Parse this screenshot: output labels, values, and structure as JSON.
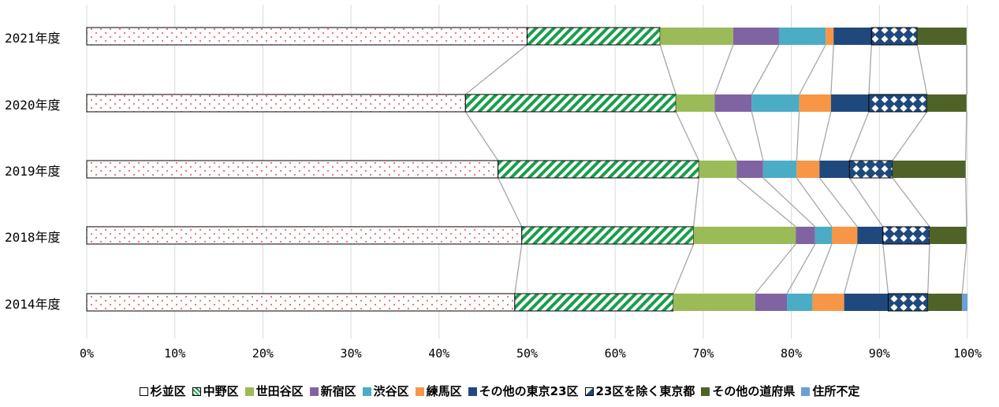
{
  "chart_data": {
    "type": "bar",
    "orientation": "horizontal",
    "stacked": "100%",
    "title": "",
    "xlabel": "",
    "ylabel": "",
    "xlim": [
      0,
      100
    ],
    "x_ticks": [
      "0%",
      "10%",
      "20%",
      "30%",
      "40%",
      "50%",
      "60%",
      "70%",
      "80%",
      "90%",
      "100%"
    ],
    "categories": [
      "2021年度",
      "2020年度",
      "2019年度",
      "2018年度",
      "2014年度"
    ],
    "series": [
      {
        "name": "杉並区",
        "color": "#ffffff",
        "pattern": "dots",
        "values": [
          50.0,
          43.0,
          46.7,
          49.4,
          48.6
        ]
      },
      {
        "name": "中野区",
        "color": "#1a9e4b",
        "pattern": "stripes",
        "values": [
          15.1,
          23.9,
          22.8,
          19.5,
          18.0
        ]
      },
      {
        "name": "世田谷区",
        "color": "#9bbb59",
        "pattern": "solid",
        "values": [
          8.3,
          4.4,
          4.3,
          11.6,
          9.3
        ]
      },
      {
        "name": "新宿区",
        "color": "#8064a2",
        "pattern": "solid",
        "values": [
          5.2,
          4.2,
          3.0,
          2.2,
          3.6
        ]
      },
      {
        "name": "渋谷区",
        "color": "#4bacc6",
        "pattern": "solid",
        "values": [
          5.3,
          5.4,
          3.8,
          1.9,
          2.9
        ]
      },
      {
        "name": "練馬区",
        "color": "#f79646",
        "pattern": "solid",
        "values": [
          0.9,
          3.6,
          2.6,
          2.9,
          3.6
        ]
      },
      {
        "name": "その他の東京23区",
        "color": "#1f497d",
        "pattern": "solid",
        "values": [
          4.3,
          4.3,
          3.4,
          2.9,
          5.0
        ]
      },
      {
        "name": "23区を除く東京都",
        "color": "#1f497d",
        "pattern": "diamonds",
        "values": [
          5.2,
          6.6,
          4.9,
          5.3,
          4.5
        ]
      },
      {
        "name": "その他の道府県",
        "color": "#4f6228",
        "pattern": "solid",
        "values": [
          5.6,
          4.5,
          8.3,
          4.2,
          3.9
        ]
      },
      {
        "name": "住所不定",
        "color": "#6a9fd8",
        "pattern": "solid",
        "values": [
          0,
          0,
          0,
          0,
          0.6
        ]
      }
    ],
    "grid": true,
    "series_lines": true,
    "legend_position": "bottom"
  }
}
